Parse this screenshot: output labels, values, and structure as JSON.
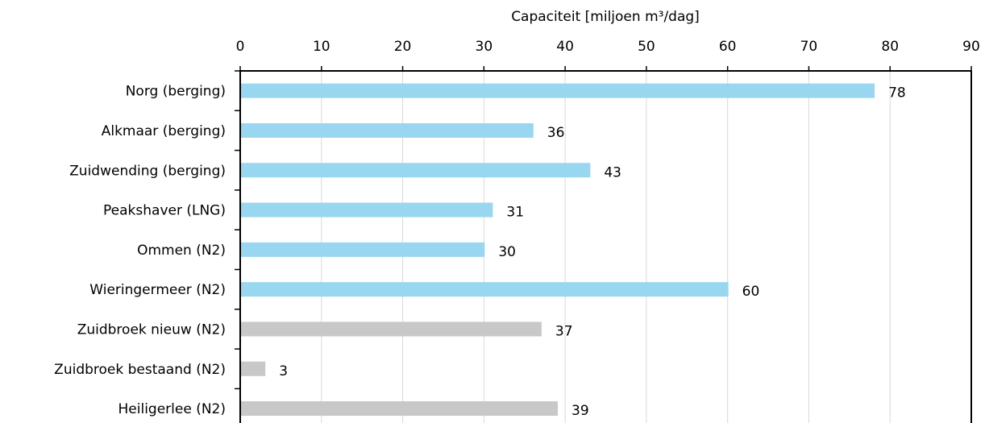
{
  "chart_data": {
    "type": "bar",
    "orientation": "horizontal",
    "x_label": "Capaciteit [miljoen m³/dag]",
    "categories": [
      "Norg (berging)",
      "Alkmaar (berging)",
      "Zuidwending (berging)",
      "Peakshaver (LNG)",
      "Ommen (N2)",
      "Wieringermeer (N2)",
      "Zuidbroek nieuw (N2)",
      "Zuidbroek bestaand (N2)",
      "Heiligerlee (N2)"
    ],
    "values": [
      78,
      36,
      43,
      31,
      30,
      60,
      37,
      3,
      39
    ],
    "colors": [
      "#99d6f0",
      "#99d6f0",
      "#99d6f0",
      "#99d6f0",
      "#99d6f0",
      "#99d6f0",
      "#c8c8c8",
      "#c8c8c8",
      "#c8c8c8"
    ],
    "xlim": [
      0,
      90
    ],
    "xticks": [
      0,
      10,
      20,
      30,
      40,
      50,
      60,
      70,
      80,
      90
    ],
    "grid": true
  }
}
